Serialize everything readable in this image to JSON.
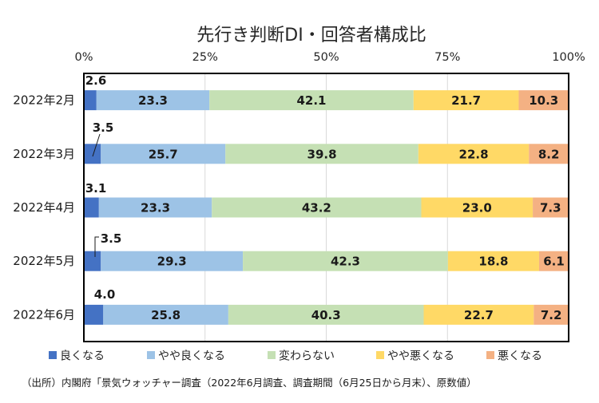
{
  "chart_data": {
    "type": "bar",
    "horizontal": true,
    "stacked": true,
    "title": "先行き判断DI・回答者構成比",
    "categories": [
      "2022年2月",
      "2022年3月",
      "2022年4月",
      "2022年5月",
      "2022年6月"
    ],
    "xlim": [
      0,
      100
    ],
    "xticks": [
      0,
      25,
      50,
      75,
      100
    ],
    "xtick_labels": [
      "0%",
      "25%",
      "50%",
      "75%",
      "100%"
    ],
    "grid": true,
    "legend_position": "bottom",
    "data_labels": true,
    "series": [
      {
        "name": "良くなる",
        "color": "#4472C4",
        "values": [
          2.6,
          3.5,
          3.1,
          3.5,
          4.0
        ]
      },
      {
        "name": "やや良くなる",
        "color": "#9DC3E6",
        "values": [
          23.3,
          25.7,
          23.3,
          29.3,
          25.8
        ]
      },
      {
        "name": "変わらない",
        "color": "#C5E0B4",
        "values": [
          42.1,
          39.8,
          43.2,
          42.3,
          40.3
        ]
      },
      {
        "name": "やや悪くなる",
        "color": "#FFD966",
        "values": [
          21.7,
          22.8,
          23.0,
          18.8,
          22.7
        ]
      },
      {
        "name": "悪くなる",
        "color": "#F4B183",
        "values": [
          10.3,
          8.2,
          7.3,
          6.1,
          7.2
        ]
      }
    ]
  },
  "footnote": "（出所）内閣府「景気ウォッチャー調査（2022年6月調査、調査期間（6月25日から月末）、原数値）"
}
